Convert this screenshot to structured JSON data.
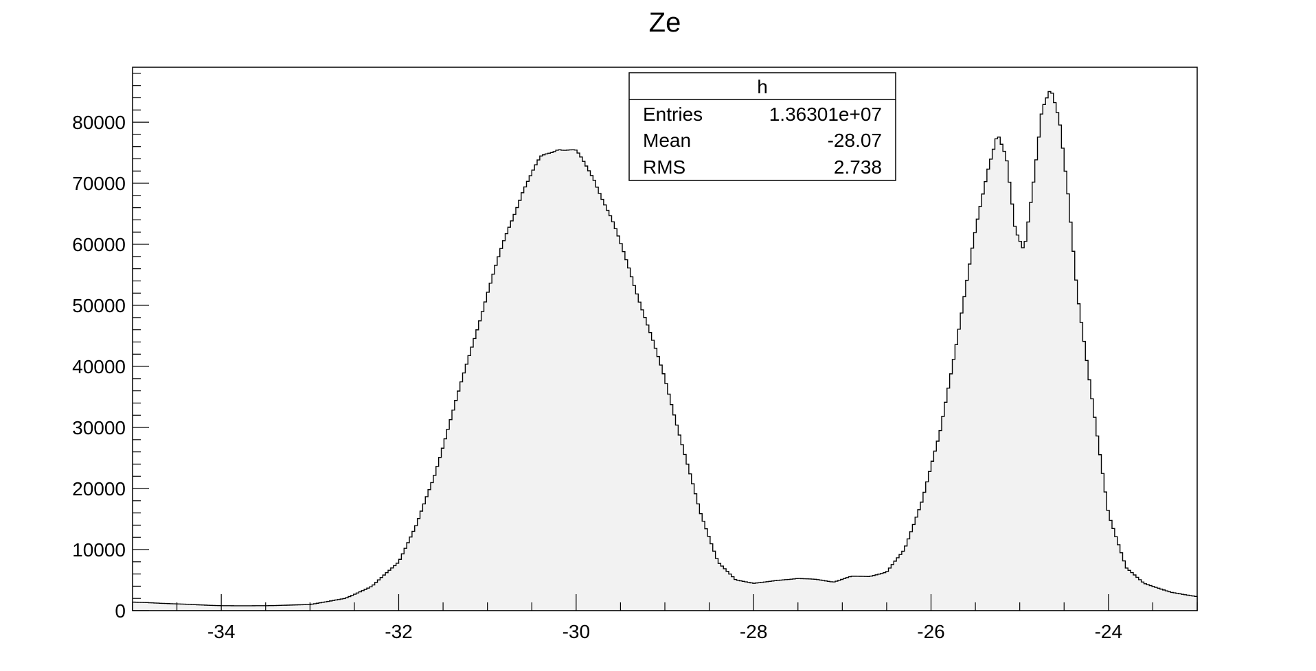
{
  "chart_data": {
    "type": "histogram",
    "title": "Ze",
    "xlabel": "",
    "ylabel": "",
    "xlim": [
      -35,
      -23
    ],
    "ylim": [
      0,
      89000
    ],
    "grid": false,
    "fill_color": "#f2f2f2",
    "line_color": "#000000",
    "x_ticks": [
      -34,
      -32,
      -30,
      -28,
      -26,
      -24
    ],
    "y_ticks": [
      0,
      10000,
      20000,
      30000,
      40000,
      50000,
      60000,
      70000,
      80000
    ],
    "bin_width": 0.03,
    "profile": [
      [
        -35.0,
        1400
      ],
      [
        -34.5,
        1100
      ],
      [
        -34.0,
        800
      ],
      [
        -33.5,
        800
      ],
      [
        -33.0,
        1000
      ],
      [
        -32.6,
        2000
      ],
      [
        -32.3,
        4000
      ],
      [
        -32.0,
        8000
      ],
      [
        -31.8,
        14000
      ],
      [
        -31.6,
        22000
      ],
      [
        -31.4,
        32000
      ],
      [
        -31.2,
        42000
      ],
      [
        -31.0,
        52000
      ],
      [
        -30.8,
        61000
      ],
      [
        -30.6,
        69000
      ],
      [
        -30.4,
        74000
      ],
      [
        -30.2,
        76000
      ],
      [
        -30.0,
        75000
      ],
      [
        -29.8,
        71000
      ],
      [
        -29.6,
        64000
      ],
      [
        -29.4,
        56000
      ],
      [
        -29.2,
        47000
      ],
      [
        -29.0,
        38000
      ],
      [
        -28.8,
        27000
      ],
      [
        -28.6,
        16000
      ],
      [
        -28.4,
        8000
      ],
      [
        -28.2,
        5000
      ],
      [
        -28.0,
        4500
      ],
      [
        -27.8,
        4800
      ],
      [
        -27.5,
        5300
      ],
      [
        -27.3,
        5100
      ],
      [
        -27.1,
        4700
      ],
      [
        -26.9,
        5600
      ],
      [
        -26.7,
        5600
      ],
      [
        -26.5,
        6300
      ],
      [
        -26.3,
        10000
      ],
      [
        -26.1,
        18000
      ],
      [
        -25.9,
        29000
      ],
      [
        -25.7,
        45000
      ],
      [
        -25.5,
        62000
      ],
      [
        -25.35,
        73000
      ],
      [
        -25.25,
        78500
      ],
      [
        -25.15,
        74000
      ],
      [
        -25.05,
        62000
      ],
      [
        -24.95,
        59000
      ],
      [
        -24.85,
        70000
      ],
      [
        -24.75,
        82000
      ],
      [
        -24.65,
        85000
      ],
      [
        -24.55,
        80000
      ],
      [
        -24.45,
        68000
      ],
      [
        -24.35,
        52000
      ],
      [
        -24.2,
        36000
      ],
      [
        -24.0,
        16000
      ],
      [
        -23.8,
        7000
      ],
      [
        -23.6,
        4500
      ],
      [
        -23.3,
        3000
      ],
      [
        -23.0,
        2300
      ]
    ],
    "stats_box": {
      "name": "h",
      "rows": [
        {
          "label": "Entries",
          "value": "1.36301e+07"
        },
        {
          "label": "Mean",
          "value": "-28.07"
        },
        {
          "label": "RMS",
          "value": "2.738"
        }
      ]
    }
  }
}
